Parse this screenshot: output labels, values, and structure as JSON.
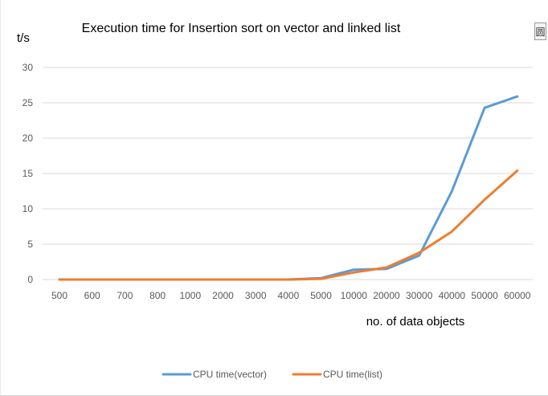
{
  "chart_data": {
    "type": "line",
    "title": "Execution time for Insertion sort on vector and linked list",
    "xlabel": "no. of data objects",
    "ylabel": "t/s",
    "categories": [
      "500",
      "600",
      "700",
      "800",
      "1000",
      "2000",
      "3000",
      "4000",
      "5000",
      "10000",
      "20000",
      "30000",
      "40000",
      "50000",
      "60000"
    ],
    "ylim": [
      0,
      30
    ],
    "yticks": [
      "0",
      "5",
      "10",
      "15",
      "20",
      "25",
      "30"
    ],
    "grid": true,
    "legend_position": "bottom",
    "series": [
      {
        "name": "CPU time(vector)",
        "color": "#5B9BD5",
        "values": [
          0,
          0,
          0,
          0,
          0,
          0,
          0,
          0,
          0.2,
          1.4,
          1.5,
          3.4,
          12.5,
          24.3,
          25.9
        ]
      },
      {
        "name": "CPU time(list)",
        "color": "#ED7D31",
        "values": [
          0,
          0,
          0,
          0,
          0,
          0,
          0,
          0,
          0.1,
          1.0,
          1.7,
          3.8,
          6.8,
          11.3,
          15.4
        ]
      }
    ]
  },
  "side_button": {
    "glyph": "圆"
  }
}
